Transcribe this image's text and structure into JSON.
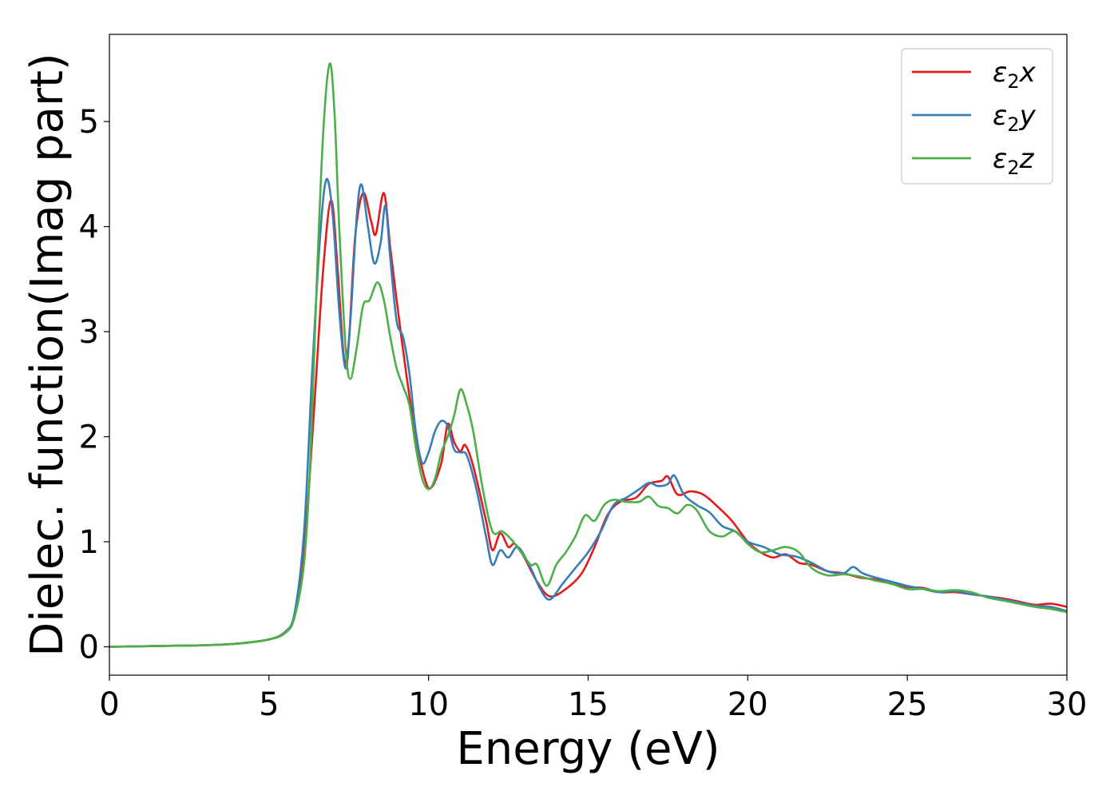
{
  "chart_data": {
    "type": "line",
    "title": "",
    "xlabel": "Energy (eV)",
    "ylabel": "Dielec. function(Imag part)",
    "xlim": [
      0,
      30
    ],
    "ylim": [
      -0.27,
      5.83
    ],
    "xticks": [
      0,
      5,
      10,
      15,
      20,
      25,
      30
    ],
    "xtick_labels": [
      "0",
      "5",
      "10",
      "15",
      "20",
      "25",
      "30"
    ],
    "yticks": [
      0,
      1,
      2,
      3,
      4,
      5
    ],
    "ytick_labels": [
      "0",
      "1",
      "2",
      "3",
      "4",
      "5"
    ],
    "grid": false,
    "legend_position": "top-right",
    "series": [
      {
        "name": "ε₂x",
        "legend_base": "ε",
        "legend_sub": "2",
        "legend_axis": "x",
        "color": "#e41a1c",
        "points": [
          [
            0,
            0
          ],
          [
            2,
            0.01
          ],
          [
            3,
            0.015
          ],
          [
            4,
            0.03
          ],
          [
            5,
            0.07
          ],
          [
            5.5,
            0.14
          ],
          [
            5.8,
            0.3
          ],
          [
            6.1,
            0.9
          ],
          [
            6.4,
            2.2
          ],
          [
            6.7,
            3.6
          ],
          [
            6.95,
            4.25
          ],
          [
            7.15,
            3.6
          ],
          [
            7.35,
            2.75
          ],
          [
            7.5,
            2.9
          ],
          [
            7.7,
            3.9
          ],
          [
            7.95,
            4.32
          ],
          [
            8.2,
            4.05
          ],
          [
            8.35,
            3.93
          ],
          [
            8.6,
            4.32
          ],
          [
            8.8,
            3.8
          ],
          [
            9.0,
            3.3
          ],
          [
            9.3,
            2.6
          ],
          [
            9.6,
            2.0
          ],
          [
            9.9,
            1.58
          ],
          [
            10.1,
            1.52
          ],
          [
            10.4,
            1.75
          ],
          [
            10.6,
            2.12
          ],
          [
            10.8,
            1.95
          ],
          [
            11.0,
            1.86
          ],
          [
            11.15,
            1.92
          ],
          [
            11.4,
            1.72
          ],
          [
            11.8,
            1.2
          ],
          [
            12.0,
            0.92
          ],
          [
            12.25,
            1.08
          ],
          [
            12.5,
            0.95
          ],
          [
            12.7,
            0.98
          ],
          [
            13.0,
            0.85
          ],
          [
            13.4,
            0.62
          ],
          [
            13.8,
            0.48
          ],
          [
            14.3,
            0.55
          ],
          [
            14.8,
            0.7
          ],
          [
            15.2,
            0.95
          ],
          [
            15.6,
            1.25
          ],
          [
            16.0,
            1.38
          ],
          [
            16.5,
            1.42
          ],
          [
            16.9,
            1.55
          ],
          [
            17.3,
            1.58
          ],
          [
            17.5,
            1.62
          ],
          [
            17.8,
            1.45
          ],
          [
            18.2,
            1.48
          ],
          [
            18.6,
            1.45
          ],
          [
            19.0,
            1.35
          ],
          [
            19.5,
            1.2
          ],
          [
            20.0,
            1.0
          ],
          [
            20.4,
            0.9
          ],
          [
            20.8,
            0.85
          ],
          [
            21.2,
            0.88
          ],
          [
            21.6,
            0.8
          ],
          [
            22.0,
            0.78
          ],
          [
            22.5,
            0.72
          ],
          [
            23.0,
            0.7
          ],
          [
            23.5,
            0.66
          ],
          [
            24.0,
            0.64
          ],
          [
            24.5,
            0.6
          ],
          [
            25.0,
            0.57
          ],
          [
            25.5,
            0.56
          ],
          [
            26.0,
            0.52
          ],
          [
            26.5,
            0.52
          ],
          [
            27.0,
            0.5
          ],
          [
            27.5,
            0.48
          ],
          [
            28.0,
            0.46
          ],
          [
            28.5,
            0.43
          ],
          [
            29.0,
            0.4
          ],
          [
            29.5,
            0.41
          ],
          [
            30.0,
            0.38
          ]
        ]
      },
      {
        "name": "ε₂y",
        "legend_base": "ε",
        "legend_sub": "2",
        "legend_axis": "y",
        "color": "#377eb8",
        "points": [
          [
            0,
            0
          ],
          [
            2,
            0.01
          ],
          [
            3,
            0.015
          ],
          [
            4,
            0.03
          ],
          [
            5,
            0.07
          ],
          [
            5.5,
            0.14
          ],
          [
            5.8,
            0.32
          ],
          [
            6.1,
            1.1
          ],
          [
            6.35,
            2.6
          ],
          [
            6.6,
            3.9
          ],
          [
            6.8,
            4.45
          ],
          [
            7.0,
            4.1
          ],
          [
            7.2,
            3.2
          ],
          [
            7.4,
            2.65
          ],
          [
            7.55,
            3.1
          ],
          [
            7.75,
            4.1
          ],
          [
            7.9,
            4.4
          ],
          [
            8.1,
            4.0
          ],
          [
            8.3,
            3.65
          ],
          [
            8.5,
            3.85
          ],
          [
            8.65,
            4.2
          ],
          [
            8.8,
            3.7
          ],
          [
            9.0,
            3.1
          ],
          [
            9.2,
            2.95
          ],
          [
            9.4,
            2.6
          ],
          [
            9.6,
            2.05
          ],
          [
            9.8,
            1.75
          ],
          [
            10.0,
            1.85
          ],
          [
            10.2,
            2.05
          ],
          [
            10.4,
            2.15
          ],
          [
            10.6,
            2.1
          ],
          [
            10.8,
            1.88
          ],
          [
            11.0,
            1.85
          ],
          [
            11.2,
            1.82
          ],
          [
            11.5,
            1.5
          ],
          [
            11.8,
            1.05
          ],
          [
            12.0,
            0.78
          ],
          [
            12.25,
            0.92
          ],
          [
            12.5,
            0.85
          ],
          [
            12.8,
            0.95
          ],
          [
            13.2,
            0.75
          ],
          [
            13.5,
            0.55
          ],
          [
            13.8,
            0.45
          ],
          [
            14.2,
            0.6
          ],
          [
            14.6,
            0.75
          ],
          [
            15.0,
            0.9
          ],
          [
            15.4,
            1.1
          ],
          [
            15.8,
            1.35
          ],
          [
            16.2,
            1.42
          ],
          [
            16.6,
            1.5
          ],
          [
            16.9,
            1.56
          ],
          [
            17.2,
            1.53
          ],
          [
            17.5,
            1.55
          ],
          [
            17.7,
            1.63
          ],
          [
            18.0,
            1.45
          ],
          [
            18.4,
            1.35
          ],
          [
            18.8,
            1.28
          ],
          [
            19.2,
            1.15
          ],
          [
            19.6,
            1.1
          ],
          [
            20.0,
            1.0
          ],
          [
            20.5,
            0.95
          ],
          [
            21.0,
            0.88
          ],
          [
            21.5,
            0.86
          ],
          [
            22.0,
            0.8
          ],
          [
            22.5,
            0.72
          ],
          [
            23.0,
            0.7
          ],
          [
            23.3,
            0.76
          ],
          [
            23.6,
            0.7
          ],
          [
            24.0,
            0.66
          ],
          [
            24.5,
            0.62
          ],
          [
            25.0,
            0.58
          ],
          [
            25.5,
            0.55
          ],
          [
            26.0,
            0.52
          ],
          [
            26.5,
            0.53
          ],
          [
            27.0,
            0.5
          ],
          [
            27.5,
            0.48
          ],
          [
            28.0,
            0.45
          ],
          [
            28.5,
            0.42
          ],
          [
            29.0,
            0.39
          ],
          [
            29.5,
            0.38
          ],
          [
            30.0,
            0.34
          ]
        ]
      },
      {
        "name": "ε₂z",
        "legend_base": "ε",
        "legend_sub": "2",
        "legend_axis": "z",
        "color": "#4daf4a",
        "points": [
          [
            0,
            0
          ],
          [
            2,
            0.01
          ],
          [
            3,
            0.015
          ],
          [
            4,
            0.03
          ],
          [
            5,
            0.07
          ],
          [
            5.5,
            0.13
          ],
          [
            5.8,
            0.28
          ],
          [
            6.1,
            0.8
          ],
          [
            6.3,
            1.8
          ],
          [
            6.5,
            3.5
          ],
          [
            6.7,
            4.9
          ],
          [
            6.9,
            5.55
          ],
          [
            7.05,
            5.1
          ],
          [
            7.2,
            4.0
          ],
          [
            7.4,
            2.85
          ],
          [
            7.55,
            2.55
          ],
          [
            7.75,
            2.85
          ],
          [
            7.95,
            3.25
          ],
          [
            8.15,
            3.3
          ],
          [
            8.4,
            3.47
          ],
          [
            8.6,
            3.3
          ],
          [
            8.8,
            2.95
          ],
          [
            9.0,
            2.65
          ],
          [
            9.2,
            2.48
          ],
          [
            9.4,
            2.3
          ],
          [
            9.6,
            1.9
          ],
          [
            9.8,
            1.6
          ],
          [
            10.0,
            1.5
          ],
          [
            10.2,
            1.6
          ],
          [
            10.4,
            1.85
          ],
          [
            10.6,
            2.0
          ],
          [
            10.8,
            2.2
          ],
          [
            11.0,
            2.45
          ],
          [
            11.2,
            2.3
          ],
          [
            11.4,
            2.05
          ],
          [
            11.7,
            1.5
          ],
          [
            12.0,
            1.1
          ],
          [
            12.3,
            1.1
          ],
          [
            12.6,
            1.02
          ],
          [
            12.9,
            0.9
          ],
          [
            13.2,
            0.78
          ],
          [
            13.4,
            0.78
          ],
          [
            13.7,
            0.58
          ],
          [
            14.0,
            0.78
          ],
          [
            14.3,
            0.9
          ],
          [
            14.6,
            1.05
          ],
          [
            14.9,
            1.25
          ],
          [
            15.2,
            1.2
          ],
          [
            15.5,
            1.35
          ],
          [
            15.8,
            1.4
          ],
          [
            16.2,
            1.38
          ],
          [
            16.6,
            1.38
          ],
          [
            16.9,
            1.43
          ],
          [
            17.2,
            1.34
          ],
          [
            17.5,
            1.32
          ],
          [
            17.8,
            1.27
          ],
          [
            18.1,
            1.35
          ],
          [
            18.4,
            1.3
          ],
          [
            18.8,
            1.1
          ],
          [
            19.2,
            1.05
          ],
          [
            19.6,
            1.1
          ],
          [
            20.0,
            0.98
          ],
          [
            20.4,
            0.9
          ],
          [
            20.8,
            0.92
          ],
          [
            21.2,
            0.95
          ],
          [
            21.6,
            0.9
          ],
          [
            22.0,
            0.75
          ],
          [
            22.5,
            0.68
          ],
          [
            23.0,
            0.69
          ],
          [
            23.5,
            0.67
          ],
          [
            24.0,
            0.63
          ],
          [
            24.5,
            0.6
          ],
          [
            25.0,
            0.55
          ],
          [
            25.5,
            0.55
          ],
          [
            26.0,
            0.53
          ],
          [
            26.5,
            0.54
          ],
          [
            27.0,
            0.52
          ],
          [
            27.5,
            0.47
          ],
          [
            28.0,
            0.44
          ],
          [
            28.5,
            0.41
          ],
          [
            29.0,
            0.38
          ],
          [
            29.5,
            0.36
          ],
          [
            30.0,
            0.33
          ]
        ]
      }
    ]
  }
}
